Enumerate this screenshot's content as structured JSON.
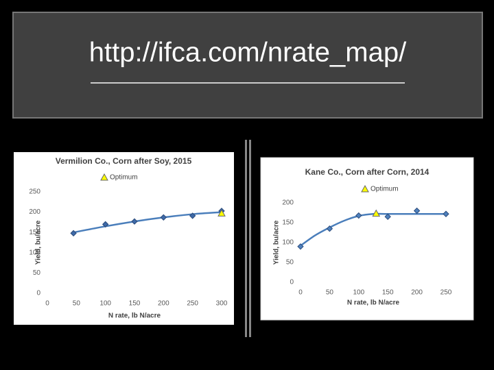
{
  "title": "http://ifca.com/nrate_map/",
  "chart_data": [
    {
      "type": "scatter",
      "title": "Vermilion Co., Corn after Soy, 2015",
      "xlabel": "N rate, lb N/acre",
      "ylabel": "Yield, bu/acre",
      "xlim": [
        0,
        300
      ],
      "xticks": [
        0,
        50,
        100,
        150,
        200,
        250,
        300
      ],
      "ylim": [
        0,
        250
      ],
      "yticks": [
        0,
        50,
        100,
        150,
        200,
        250
      ],
      "legend": "top",
      "series": [
        {
          "style": "line",
          "color": "#4a7ebb",
          "x": [
            45,
            100,
            150,
            200,
            250,
            300
          ],
          "values": [
            150,
            165,
            177,
            187,
            195,
            200
          ]
        },
        {
          "marker": "diamond",
          "color": "#3f6aa8",
          "x": [
            45,
            100,
            150,
            200,
            250,
            300
          ],
          "values": [
            148,
            170,
            177,
            187,
            191,
            203
          ]
        },
        {
          "name": "Optimum",
          "marker": "triangle",
          "color": "#ffff00",
          "x": [
            300
          ],
          "values": [
            197
          ]
        }
      ]
    },
    {
      "type": "scatter",
      "title": "Kane Co., Corn after Corn, 2014",
      "xlabel": "N rate, lb N/acre",
      "ylabel": "Yield, bu/acre",
      "xlim": [
        0,
        250
      ],
      "xticks": [
        0,
        50,
        100,
        150,
        200,
        250
      ],
      "ylim": [
        0,
        200
      ],
      "yticks": [
        0,
        50,
        100,
        150,
        200
      ],
      "legend": "top",
      "series": [
        {
          "style": "line",
          "color": "#4a7ebb",
          "x": [
            0,
            25,
            50,
            75,
            100,
            125,
            150,
            200,
            250
          ],
          "values": [
            92,
            118,
            138,
            155,
            167,
            172,
            172,
            172,
            172
          ]
        },
        {
          "marker": "diamond",
          "color": "#4f81bd",
          "x": [
            0,
            50,
            100,
            150,
            200,
            250
          ],
          "values": [
            90,
            135,
            168,
            165,
            180,
            172
          ]
        },
        {
          "name": "Optimum",
          "marker": "triangle",
          "color": "#ffff00",
          "x": [
            130
          ],
          "values": [
            173
          ]
        }
      ]
    }
  ]
}
